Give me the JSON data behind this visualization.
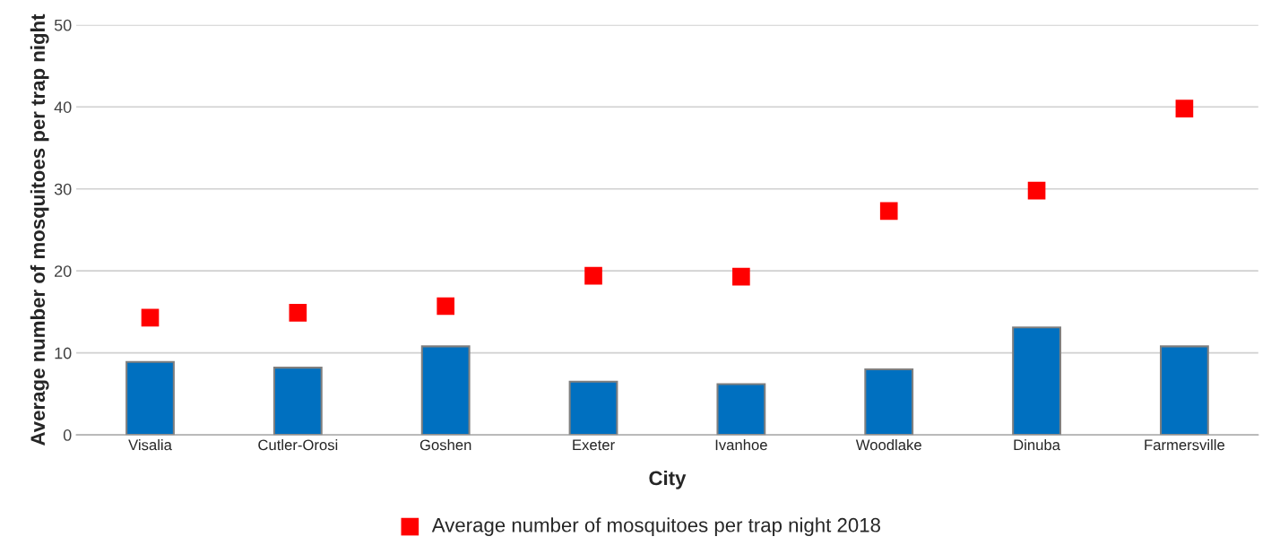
{
  "chart_data": {
    "type": "bar",
    "xlabel": "City",
    "ylabel": "Average number of mosquitoes per trap night",
    "categories": [
      "Visalia",
      "Cutler-Orosi",
      "Goshen",
      "Exeter",
      "Ivanhoe",
      "Woodlake",
      "Dinuba",
      "Farmersville"
    ],
    "series": [
      {
        "color": "#0070c0",
        "values": [
          8.9,
          8.2,
          10.8,
          6.5,
          6.2,
          8.0,
          13.1,
          10.8
        ]
      },
      {
        "type": "scatter",
        "name": "Average number of mosquitoes per trap night 2018",
        "color": "#ff0000",
        "marker": "square",
        "values": [
          14.3,
          14.9,
          15.7,
          19.4,
          19.3,
          27.3,
          29.8,
          39.8
        ]
      }
    ],
    "ylim": [
      0,
      50
    ],
    "yticks": [
      0,
      10,
      20,
      30,
      40,
      50
    ],
    "grid": "y",
    "legend": "bottom"
  }
}
